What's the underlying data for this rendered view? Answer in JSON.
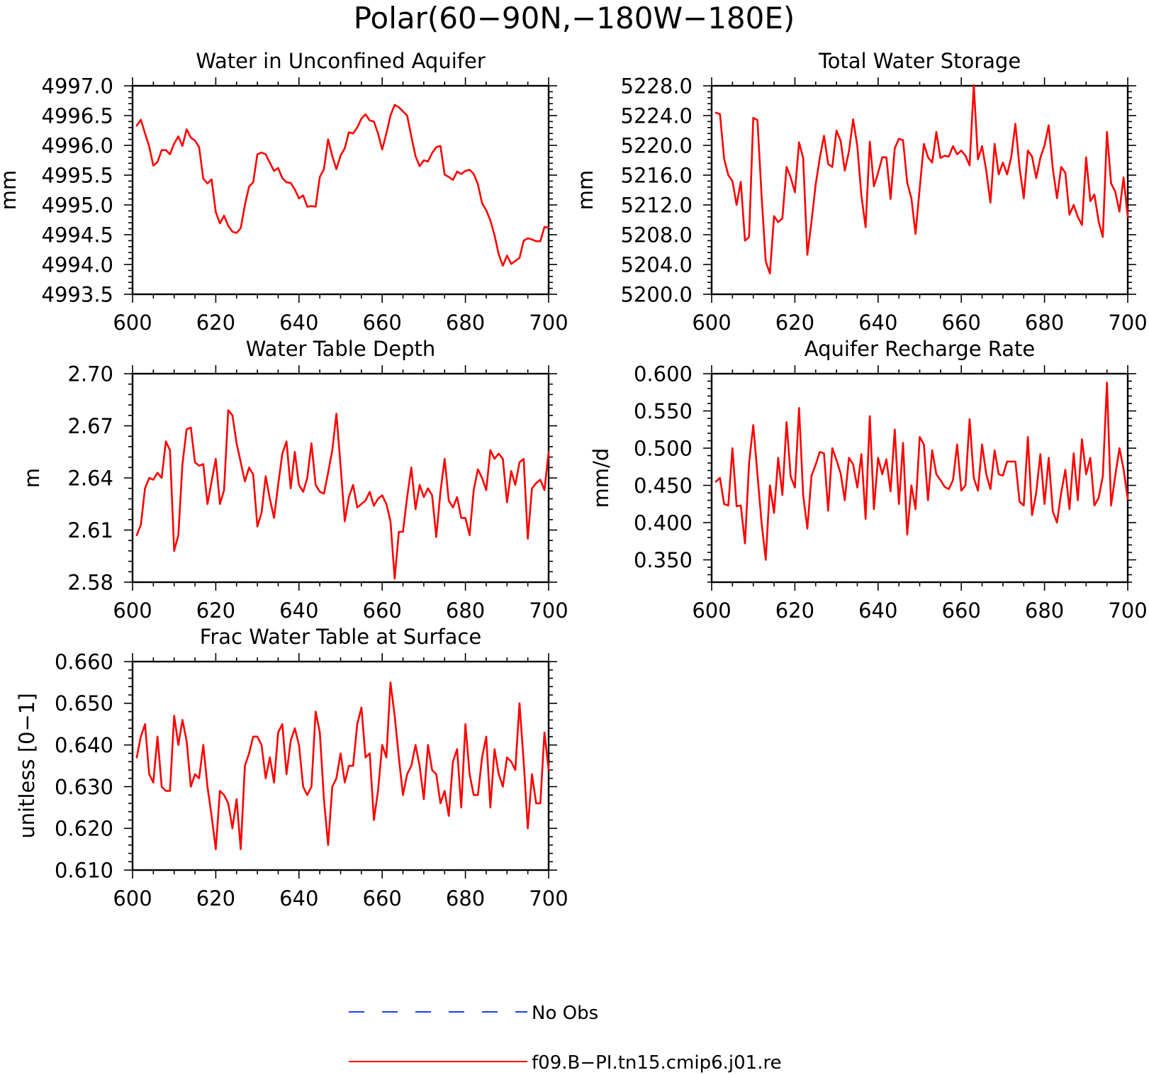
{
  "title": "Polar(60−90N,−180W−180E)",
  "legend": [
    {
      "label": "No Obs",
      "color": "#1f3cff",
      "style": "dashed"
    },
    {
      "label": "f09.B−PI.tn15.cmip6.j01.re",
      "color": "#ff0000",
      "style": "solid"
    }
  ],
  "chart_data": [
    {
      "type": "line",
      "title": "Water in Unconfined Aquifer",
      "ylabel": "mm",
      "xlim": [
        600,
        700
      ],
      "ylim": [
        4993.5,
        4997.0
      ],
      "xticks": [
        600,
        620,
        640,
        660,
        680,
        700
      ],
      "yticks": [
        4993.5,
        4994.0,
        4994.5,
        4995.0,
        4995.5,
        4996.0,
        4996.5,
        4997.0
      ],
      "ytick_labels": [
        "4993.5",
        "4994.0",
        "4994.5",
        "4995.0",
        "4995.5",
        "4996.0",
        "4996.5",
        "4997.0"
      ],
      "series": [
        {
          "name": "f09.B−PI.tn15.cmip6.j01.re",
          "color": "#ff0000",
          "x_start": 601,
          "x_step": 1,
          "values": [
            4996.33,
            4996.43,
            4996.2,
            4995.98,
            4995.66,
            4995.72,
            4995.92,
            4995.92,
            4995.85,
            4996.03,
            4996.15,
            4995.99,
            4996.27,
            4996.13,
            4996.08,
            4995.97,
            4995.44,
            4995.36,
            4995.43,
            4994.88,
            4994.69,
            4994.82,
            4994.65,
            4994.55,
            4994.53,
            4994.61,
            4995.0,
            4995.31,
            4995.38,
            4995.85,
            4995.88,
            4995.85,
            4995.71,
            4995.57,
            4995.62,
            4995.45,
            4995.38,
            4995.37,
            4995.26,
            4995.11,
            4995.16,
            4994.97,
            4994.98,
            4994.97,
            4995.47,
            4995.6,
            4996.1,
            4995.82,
            4995.6,
            4995.83,
            4995.95,
            4996.22,
            4996.2,
            4996.3,
            4996.45,
            4996.52,
            4996.42,
            4996.4,
            4996.2,
            4995.93,
            4996.2,
            4996.5,
            4996.68,
            4996.64,
            4996.57,
            4996.5,
            4996.15,
            4995.82,
            4995.65,
            4995.75,
            4995.73,
            4995.87,
            4995.97,
            4995.99,
            4995.51,
            4995.47,
            4995.42,
            4995.56,
            4995.52,
            4995.57,
            4995.59,
            4995.52,
            4995.35,
            4995.03,
            4994.91,
            4994.74,
            4994.49,
            4994.17,
            4993.98,
            4994.15,
            4994.01,
            4994.06,
            4994.11,
            4994.4,
            4994.44,
            4994.42,
            4994.39,
            4994.39,
            4994.63,
            4994.62
          ]
        }
      ]
    },
    {
      "type": "line",
      "title": "Total Water Storage",
      "ylabel": "mm",
      "xlim": [
        600,
        700
      ],
      "ylim": [
        5200.0,
        5228.0
      ],
      "xticks": [
        600,
        620,
        640,
        660,
        680,
        700
      ],
      "yticks": [
        5200.0,
        5204.0,
        5208.0,
        5212.0,
        5216.0,
        5220.0,
        5224.0,
        5228.0
      ],
      "ytick_labels": [
        "5200.0",
        "5204.0",
        "5208.0",
        "5212.0",
        "5216.0",
        "5220.0",
        "5224.0",
        "5228.0"
      ],
      "series": [
        {
          "name": "f09.B−PI.tn15.cmip6.j01.re",
          "color": "#ff0000",
          "x_start": 601,
          "x_step": 1,
          "values": [
            5224.4,
            5224.2,
            5218.2,
            5216.0,
            5215.2,
            5212.0,
            5215.1,
            5207.2,
            5207.7,
            5223.7,
            5223.4,
            5213.3,
            5204.4,
            5202.8,
            5210.5,
            5209.7,
            5210.2,
            5217.1,
            5215.7,
            5213.7,
            5220.4,
            5218.3,
            5205.3,
            5209.8,
            5214.8,
            5218.3,
            5221.3,
            5217.5,
            5217.1,
            5222.0,
            5220.6,
            5216.6,
            5219.2,
            5223.5,
            5219.9,
            5213.2,
            5209.0,
            5220.5,
            5214.5,
            5216.3,
            5218.4,
            5218.4,
            5212.8,
            5219.6,
            5220.9,
            5220.7,
            5215.0,
            5212.9,
            5208.1,
            5214.2,
            5220.2,
            5218.4,
            5217.7,
            5221.8,
            5218.3,
            5218.6,
            5218.5,
            5219.9,
            5218.8,
            5219.3,
            5218.6,
            5217.3,
            5228.1,
            5218.1,
            5219.9,
            5216.6,
            5212.3,
            5220.2,
            5216.1,
            5217.7,
            5216.1,
            5218.4,
            5222.9,
            5217.0,
            5212.9,
            5219.3,
            5218.5,
            5215.6,
            5218.3,
            5220.0,
            5222.7,
            5216.9,
            5212.9,
            5217.1,
            5216.3,
            5210.7,
            5212.0,
            5210.4,
            5209.3,
            5218.4,
            5212.5,
            5213.4,
            5209.8,
            5207.7,
            5221.8,
            5214.9,
            5213.8,
            5211.1,
            5215.7,
            5210.4
          ]
        }
      ]
    },
    {
      "type": "line",
      "title": "Water Table Depth",
      "ylabel": "m",
      "xlim": [
        600,
        700
      ],
      "ylim": [
        2.58,
        2.7
      ],
      "xticks": [
        600,
        620,
        640,
        660,
        680,
        700
      ],
      "yticks": [
        2.58,
        2.61,
        2.64,
        2.67,
        2.7
      ],
      "ytick_labels": [
        "2.58",
        "2.61",
        "2.64",
        "2.67",
        "2.70"
      ],
      "series": [
        {
          "name": "f09.B−PI.tn15.cmip6.j01.re",
          "color": "#ff0000",
          "x_start": 601,
          "x_step": 1,
          "values": [
            2.607,
            2.613,
            2.634,
            2.64,
            2.639,
            2.643,
            2.64,
            2.661,
            2.656,
            2.598,
            2.607,
            2.648,
            2.668,
            2.669,
            2.649,
            2.647,
            2.648,
            2.625,
            2.638,
            2.651,
            2.625,
            2.633,
            2.679,
            2.676,
            2.66,
            2.649,
            2.638,
            2.646,
            2.642,
            2.612,
            2.62,
            2.641,
            2.628,
            2.617,
            2.636,
            2.654,
            2.661,
            2.634,
            2.655,
            2.636,
            2.632,
            2.64,
            2.66,
            2.636,
            2.632,
            2.631,
            2.643,
            2.656,
            2.677,
            2.647,
            2.615,
            2.629,
            2.636,
            2.623,
            2.625,
            2.627,
            2.632,
            2.624,
            2.628,
            2.63,
            2.625,
            2.615,
            2.582,
            2.609,
            2.609,
            2.629,
            2.646,
            2.622,
            2.636,
            2.629,
            2.634,
            2.63,
            2.606,
            2.632,
            2.651,
            2.627,
            2.623,
            2.629,
            2.617,
            2.617,
            2.607,
            2.633,
            2.645,
            2.64,
            2.633,
            2.656,
            2.651,
            2.654,
            2.651,
            2.626,
            2.644,
            2.636,
            2.649,
            2.651,
            2.605,
            2.634,
            2.637,
            2.639,
            2.633,
            2.655
          ]
        }
      ]
    },
    {
      "type": "line",
      "title": "Aquifer Recharge Rate",
      "ylabel": "mm/d",
      "xlim": [
        600,
        700
      ],
      "ylim": [
        0.32,
        0.6
      ],
      "xticks": [
        600,
        620,
        640,
        660,
        680,
        700
      ],
      "yticks": [
        0.35,
        0.4,
        0.45,
        0.5,
        0.55,
        0.6
      ],
      "ytick_labels": [
        "0.350",
        "0.400",
        "0.450",
        "0.500",
        "0.550",
        "0.600"
      ],
      "series": [
        {
          "name": "f09.B−PI.tn15.cmip6.j01.re",
          "color": "#ff0000",
          "x_start": 601,
          "x_step": 1,
          "values": [
            0.455,
            0.46,
            0.425,
            0.423,
            0.5,
            0.422,
            0.423,
            0.372,
            0.48,
            0.531,
            0.465,
            0.4,
            0.35,
            0.45,
            0.413,
            0.487,
            0.437,
            0.535,
            0.462,
            0.447,
            0.554,
            0.437,
            0.392,
            0.463,
            0.478,
            0.495,
            0.493,
            0.416,
            0.5,
            0.484,
            0.466,
            0.43,
            0.487,
            0.478,
            0.447,
            0.492,
            0.405,
            0.543,
            0.418,
            0.487,
            0.465,
            0.485,
            0.442,
            0.525,
            0.425,
            0.507,
            0.384,
            0.45,
            0.418,
            0.515,
            0.505,
            0.43,
            0.497,
            0.465,
            0.457,
            0.448,
            0.445,
            0.457,
            0.505,
            0.443,
            0.45,
            0.539,
            0.46,
            0.443,
            0.505,
            0.465,
            0.445,
            0.497,
            0.465,
            0.463,
            0.482,
            0.482,
            0.482,
            0.428,
            0.423,
            0.515,
            0.41,
            0.44,
            0.492,
            0.425,
            0.487,
            0.415,
            0.4,
            0.44,
            0.471,
            0.418,
            0.493,
            0.43,
            0.512,
            0.465,
            0.487,
            0.423,
            0.433,
            0.462,
            0.588,
            0.423,
            0.463,
            0.5,
            0.472,
            0.432
          ]
        }
      ]
    },
    {
      "type": "line",
      "title": "Frac Water Table at Surface",
      "ylabel": "unitless [0−1]",
      "xlim": [
        600,
        700
      ],
      "ylim": [
        0.61,
        0.66
      ],
      "xticks": [
        600,
        620,
        640,
        660,
        680,
        700
      ],
      "yticks": [
        0.61,
        0.62,
        0.63,
        0.64,
        0.65,
        0.66
      ],
      "ytick_labels": [
        "0.610",
        "0.620",
        "0.630",
        "0.640",
        "0.650",
        "0.660"
      ],
      "series": [
        {
          "name": "f09.B−PI.tn15.cmip6.j01.re",
          "color": "#ff0000",
          "x_start": 601,
          "x_step": 1,
          "values": [
            0.637,
            0.642,
            0.645,
            0.633,
            0.631,
            0.642,
            0.63,
            0.629,
            0.629,
            0.647,
            0.64,
            0.646,
            0.641,
            0.63,
            0.633,
            0.632,
            0.64,
            0.63,
            0.623,
            0.615,
            0.629,
            0.628,
            0.626,
            0.62,
            0.627,
            0.615,
            0.635,
            0.638,
            0.642,
            0.642,
            0.64,
            0.632,
            0.637,
            0.631,
            0.643,
            0.645,
            0.633,
            0.641,
            0.644,
            0.64,
            0.63,
            0.628,
            0.63,
            0.648,
            0.643,
            0.627,
            0.616,
            0.63,
            0.632,
            0.638,
            0.631,
            0.635,
            0.635,
            0.645,
            0.649,
            0.637,
            0.638,
            0.622,
            0.629,
            0.64,
            0.637,
            0.655,
            0.647,
            0.637,
            0.628,
            0.633,
            0.635,
            0.64,
            0.635,
            0.627,
            0.64,
            0.634,
            0.633,
            0.626,
            0.629,
            0.623,
            0.636,
            0.639,
            0.625,
            0.645,
            0.633,
            0.628,
            0.628,
            0.637,
            0.642,
            0.625,
            0.639,
            0.633,
            0.63,
            0.637,
            0.636,
            0.634,
            0.65,
            0.636,
            0.62,
            0.633,
            0.626,
            0.626,
            0.643,
            0.634
          ]
        }
      ]
    }
  ]
}
